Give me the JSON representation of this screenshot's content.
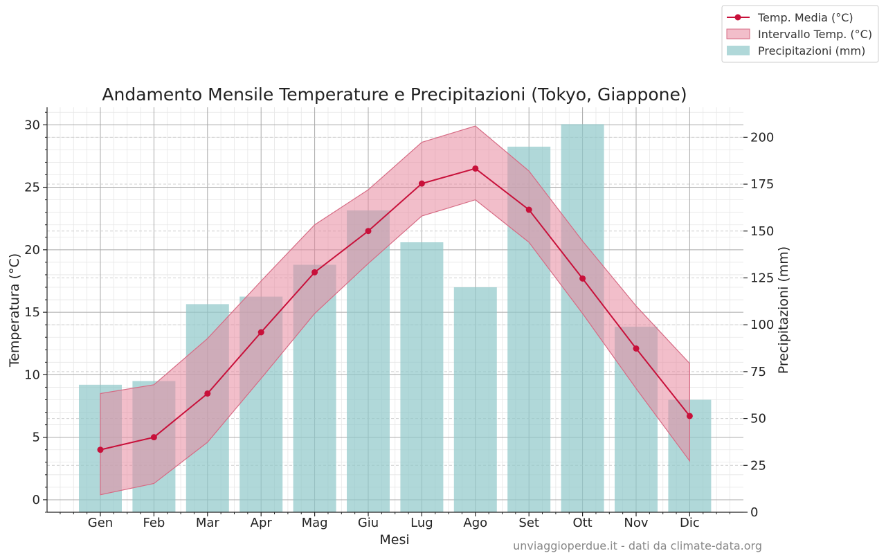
{
  "chart_data": {
    "type": "bar",
    "title": "Andamento Mensile Temperature e Precipitazioni (Tokyo, Giappone)",
    "xlabel": "Mesi",
    "ylabel_left": "Temperatura (°C)",
    "ylabel_right": "Precipitazioni (mm)",
    "categories": [
      "Gen",
      "Feb",
      "Mar",
      "Apr",
      "Mag",
      "Giu",
      "Lug",
      "Ago",
      "Set",
      "Ott",
      "Nov",
      "Dic"
    ],
    "ylim_left": [
      -1,
      31.4
    ],
    "ylim_right": [
      0,
      216
    ],
    "yticks_left": [
      0,
      5,
      10,
      15,
      20,
      25,
      30
    ],
    "yticks_right": [
      0,
      25,
      50,
      75,
      100,
      125,
      150,
      175,
      200
    ],
    "grid": true,
    "legend_position": "top-right",
    "series": [
      {
        "name": "Temp. Media (°C)",
        "kind": "line",
        "axis": "left",
        "color": "#c8103a",
        "values": [
          4.0,
          5.0,
          8.5,
          13.4,
          18.2,
          21.5,
          25.3,
          26.5,
          23.2,
          17.7,
          12.1,
          6.7
        ]
      },
      {
        "name": "Intervallo Temp. (°C)",
        "kind": "band",
        "axis": "left",
        "color": "#e8899e",
        "min": [
          0.4,
          1.3,
          4.6,
          9.7,
          14.9,
          18.9,
          22.7,
          24.0,
          20.6,
          14.9,
          8.9,
          3.1
        ],
        "max": [
          8.5,
          9.2,
          12.9,
          17.5,
          22.0,
          24.8,
          28.6,
          29.9,
          26.3,
          20.7,
          15.5,
          10.9
        ]
      },
      {
        "name": "Precipitazioni (mm)",
        "kind": "bar",
        "axis": "right",
        "color": "#8fc7c9",
        "values": [
          68,
          70,
          111,
          115,
          132,
          161,
          144,
          120,
          195,
          207,
          99,
          60
        ]
      }
    ]
  },
  "credit": "unviaggioperdue.it - dati da climate-data.org"
}
